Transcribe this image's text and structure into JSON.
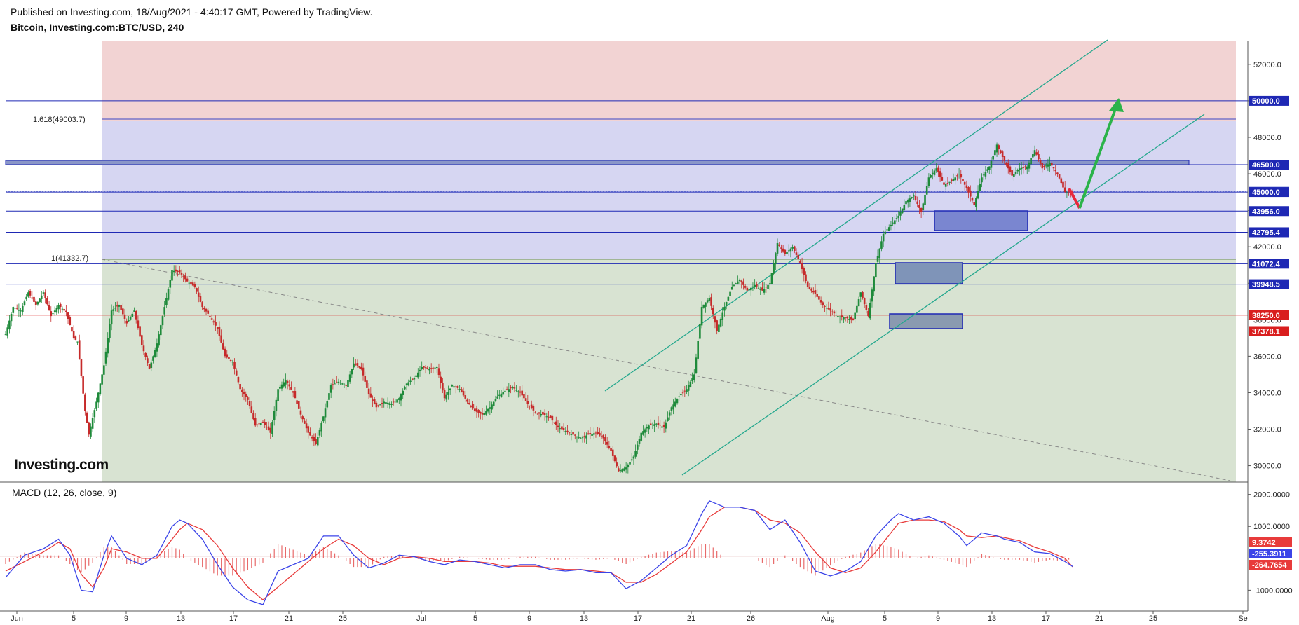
{
  "header": {
    "published": "Published on Investing.com, 18/Aug/2021 - 4:40:17 GMT, Powered by TradingView.",
    "instrument": "Bitcoin, Investing.com:BTC/USD, 240"
  },
  "logo_text": "Investing.com",
  "chart_data": [
    {
      "type": "candlestick",
      "title": "Bitcoin, Investing.com:BTC/USD, 240",
      "x_tick_labels": [
        "Jun",
        "5",
        "9",
        "13",
        "17",
        "21",
        "25",
        "Jul",
        "5",
        "9",
        "13",
        "17",
        "21",
        "26",
        "Aug",
        "5",
        "9",
        "13",
        "17",
        "21",
        "25",
        "Se"
      ],
      "y_tick_labels": [
        "30000.0",
        "32000.0",
        "34000.0",
        "36000.0",
        "38000.0",
        "40000.0",
        "42000.0",
        "44000.0",
        "46000.0",
        "48000.0",
        "50000.0",
        "52000.0"
      ],
      "ylim": [
        29100,
        53300
      ],
      "price_levels": [
        {
          "value": 50000.0,
          "label": "50000.0",
          "color": "#1e28b4"
        },
        {
          "value": 46500.0,
          "label": "46500.0",
          "color": "#1e28b4"
        },
        {
          "value": 45017.8,
          "label": "45017.8",
          "color": "#6a78d8"
        },
        {
          "value": 45000.0,
          "label": "45000.0",
          "color": "#1e28b4"
        },
        {
          "value": 43956.0,
          "label": "43956.0",
          "color": "#1e28b4"
        },
        {
          "value": 42795.4,
          "label": "42795.4",
          "color": "#1e28b4"
        },
        {
          "value": 41072.4,
          "label": "41072.4",
          "color": "#1e28b4"
        },
        {
          "value": 39948.5,
          "label": "39948.5",
          "color": "#1e28b4"
        },
        {
          "value": 38250.0,
          "label": "38250.0",
          "color": "#d91e1e"
        },
        {
          "value": 37378.1,
          "label": "37378.1",
          "color": "#d91e1e"
        }
      ],
      "fib_labels": [
        {
          "label": "1.618(49003.7)",
          "value": 49003.7,
          "color": "#3b44c4"
        },
        {
          "label": "1(41332.7)",
          "value": 41332.7,
          "color": "#4e8a2e"
        }
      ],
      "price_path": [
        [
          0,
          37200
        ],
        [
          2,
          38700
        ],
        [
          4,
          38500
        ],
        [
          6,
          39500
        ],
        [
          8,
          38800
        ],
        [
          10,
          39500
        ],
        [
          12,
          38200
        ],
        [
          14,
          38800
        ],
        [
          16,
          38400
        ],
        [
          18,
          37000
        ],
        [
          19,
          36800
        ],
        [
          21,
          33000
        ],
        [
          22,
          31700
        ],
        [
          24,
          33500
        ],
        [
          26,
          35500
        ],
        [
          28,
          38500
        ],
        [
          30,
          38800
        ],
        [
          32,
          37800
        ],
        [
          34,
          38500
        ],
        [
          36,
          36600
        ],
        [
          38,
          35300
        ],
        [
          40,
          36700
        ],
        [
          42,
          38700
        ],
        [
          44,
          40700
        ],
        [
          46,
          40600
        ],
        [
          48,
          40100
        ],
        [
          50,
          39800
        ],
        [
          52,
          38700
        ],
        [
          54,
          38200
        ],
        [
          56,
          37500
        ],
        [
          58,
          36000
        ],
        [
          60,
          35700
        ],
        [
          62,
          34200
        ],
        [
          64,
          33600
        ],
        [
          66,
          32200
        ],
        [
          68,
          32400
        ],
        [
          70,
          31800
        ],
        [
          72,
          34200
        ],
        [
          74,
          34700
        ],
        [
          76,
          34000
        ],
        [
          78,
          32800
        ],
        [
          80,
          31800
        ],
        [
          82,
          31200
        ],
        [
          84,
          32700
        ],
        [
          86,
          34400
        ],
        [
          88,
          34600
        ],
        [
          90,
          34400
        ],
        [
          92,
          35600
        ],
        [
          94,
          35300
        ],
        [
          96,
          33900
        ],
        [
          98,
          33200
        ],
        [
          100,
          33500
        ],
        [
          102,
          33400
        ],
        [
          104,
          33700
        ],
        [
          106,
          34500
        ],
        [
          108,
          34800
        ],
        [
          110,
          35400
        ],
        [
          112,
          35300
        ],
        [
          114,
          35400
        ],
        [
          116,
          33700
        ],
        [
          118,
          34400
        ],
        [
          120,
          34200
        ],
        [
          122,
          33500
        ],
        [
          124,
          33000
        ],
        [
          126,
          32800
        ],
        [
          128,
          33200
        ],
        [
          130,
          33800
        ],
        [
          132,
          34100
        ],
        [
          134,
          34300
        ],
        [
          136,
          34000
        ],
        [
          138,
          33400
        ],
        [
          140,
          32900
        ],
        [
          142,
          32800
        ],
        [
          144,
          32600
        ],
        [
          146,
          32100
        ],
        [
          148,
          31900
        ],
        [
          150,
          31700
        ],
        [
          152,
          31500
        ],
        [
          154,
          31700
        ],
        [
          156,
          31800
        ],
        [
          158,
          31500
        ],
        [
          160,
          30800
        ],
        [
          162,
          29700
        ],
        [
          164,
          29900
        ],
        [
          166,
          30500
        ],
        [
          168,
          31800
        ],
        [
          170,
          32200
        ],
        [
          172,
          32300
        ],
        [
          174,
          32100
        ],
        [
          176,
          33200
        ],
        [
          178,
          33800
        ],
        [
          180,
          34200
        ],
        [
          182,
          35000
        ],
        [
          184,
          38700
        ],
        [
          186,
          39200
        ],
        [
          188,
          37400
        ],
        [
          190,
          38700
        ],
        [
          192,
          39800
        ],
        [
          194,
          40200
        ],
        [
          196,
          39600
        ],
        [
          198,
          39900
        ],
        [
          200,
          39600
        ],
        [
          202,
          40000
        ],
        [
          204,
          42200
        ],
        [
          206,
          41600
        ],
        [
          208,
          42000
        ],
        [
          210,
          41100
        ],
        [
          212,
          39800
        ],
        [
          214,
          39400
        ],
        [
          216,
          38800
        ],
        [
          218,
          38500
        ],
        [
          220,
          38200
        ],
        [
          222,
          38100
        ],
        [
          224,
          38000
        ],
        [
          226,
          39500
        ],
        [
          228,
          38200
        ],
        [
          230,
          41100
        ],
        [
          232,
          42700
        ],
        [
          234,
          43200
        ],
        [
          236,
          43700
        ],
        [
          238,
          44500
        ],
        [
          240,
          44800
        ],
        [
          242,
          43900
        ],
        [
          244,
          45800
        ],
        [
          246,
          46300
        ],
        [
          248,
          45400
        ],
        [
          250,
          45600
        ],
        [
          252,
          46000
        ],
        [
          254,
          45200
        ],
        [
          256,
          44300
        ],
        [
          258,
          45800
        ],
        [
          260,
          46400
        ],
        [
          262,
          47600
        ],
        [
          264,
          46700
        ],
        [
          266,
          45900
        ],
        [
          268,
          46300
        ],
        [
          270,
          46400
        ],
        [
          272,
          47300
        ],
        [
          274,
          46300
        ],
        [
          276,
          46600
        ],
        [
          278,
          46000
        ],
        [
          280,
          45000
        ],
        [
          282,
          44900
        ]
      ]
    },
    {
      "type": "line",
      "title": "MACD (12, 26, close, 9)",
      "y_tick_labels": [
        "2000.0000",
        "1000.0000",
        "-1000.0000"
      ],
      "ylim": [
        -1650,
        2300
      ],
      "series": [
        {
          "name": "MACD",
          "color": "#3b44e8",
          "label": "-255.3911"
        },
        {
          "name": "Signal",
          "color": "#e83b3b",
          "label": "-264.7654"
        },
        {
          "name": "Histogram",
          "color": "#e85a5a",
          "label": "9.3742"
        }
      ],
      "macd_path": [
        [
          0,
          -600
        ],
        [
          5,
          100
        ],
        [
          10,
          300
        ],
        [
          14,
          600
        ],
        [
          17,
          100
        ],
        [
          20,
          -1000
        ],
        [
          23,
          -1050
        ],
        [
          26,
          100
        ],
        [
          28,
          700
        ],
        [
          32,
          0
        ],
        [
          36,
          -200
        ],
        [
          40,
          100
        ],
        [
          44,
          1000
        ],
        [
          46,
          1200
        ],
        [
          48,
          1100
        ],
        [
          52,
          600
        ],
        [
          56,
          -200
        ],
        [
          60,
          -900
        ],
        [
          64,
          -1300
        ],
        [
          68,
          -1450
        ],
        [
          72,
          -400
        ],
        [
          76,
          -200
        ],
        [
          80,
          0
        ],
        [
          84,
          700
        ],
        [
          88,
          700
        ],
        [
          92,
          100
        ],
        [
          96,
          -300
        ],
        [
          100,
          -150
        ],
        [
          104,
          100
        ],
        [
          108,
          50
        ],
        [
          112,
          -100
        ],
        [
          116,
          -200
        ],
        [
          120,
          -50
        ],
        [
          124,
          -100
        ],
        [
          128,
          -200
        ],
        [
          132,
          -300
        ],
        [
          136,
          -200
        ],
        [
          140,
          -200
        ],
        [
          144,
          -350
        ],
        [
          148,
          -400
        ],
        [
          152,
          -350
        ],
        [
          156,
          -450
        ],
        [
          160,
          -450
        ],
        [
          164,
          -950
        ],
        [
          168,
          -700
        ],
        [
          172,
          -300
        ],
        [
          176,
          100
        ],
        [
          180,
          400
        ],
        [
          184,
          1400
        ],
        [
          186,
          1800
        ],
        [
          190,
          1600
        ],
        [
          194,
          1600
        ],
        [
          198,
          1500
        ],
        [
          202,
          900
        ],
        [
          206,
          1200
        ],
        [
          210,
          500
        ],
        [
          214,
          -400
        ],
        [
          218,
          -550
        ],
        [
          222,
          -400
        ],
        [
          226,
          -100
        ],
        [
          230,
          700
        ],
        [
          234,
          1200
        ],
        [
          236,
          1400
        ],
        [
          240,
          1200
        ],
        [
          244,
          1300
        ],
        [
          248,
          1100
        ],
        [
          252,
          700
        ],
        [
          254,
          400
        ],
        [
          258,
          800
        ],
        [
          262,
          700
        ],
        [
          264,
          600
        ],
        [
          268,
          500
        ],
        [
          272,
          200
        ],
        [
          276,
          150
        ],
        [
          280,
          -100
        ],
        [
          282,
          -255
        ]
      ],
      "signal_path": [
        [
          0,
          -400
        ],
        [
          5,
          -100
        ],
        [
          10,
          200
        ],
        [
          14,
          500
        ],
        [
          17,
          300
        ],
        [
          20,
          -500
        ],
        [
          23,
          -900
        ],
        [
          26,
          -300
        ],
        [
          28,
          300
        ],
        [
          32,
          200
        ],
        [
          36,
          0
        ],
        [
          40,
          0
        ],
        [
          44,
          600
        ],
        [
          46,
          900
        ],
        [
          48,
          1100
        ],
        [
          52,
          900
        ],
        [
          56,
          400
        ],
        [
          60,
          -300
        ],
        [
          64,
          -900
        ],
        [
          68,
          -1300
        ],
        [
          72,
          -900
        ],
        [
          76,
          -500
        ],
        [
          80,
          -100
        ],
        [
          84,
          300
        ],
        [
          88,
          600
        ],
        [
          92,
          400
        ],
        [
          96,
          0
        ],
        [
          100,
          -200
        ],
        [
          104,
          0
        ],
        [
          108,
          50
        ],
        [
          112,
          0
        ],
        [
          116,
          -100
        ],
        [
          120,
          -100
        ],
        [
          124,
          -100
        ],
        [
          128,
          -150
        ],
        [
          132,
          -250
        ],
        [
          136,
          -250
        ],
        [
          140,
          -250
        ],
        [
          144,
          -300
        ],
        [
          148,
          -350
        ],
        [
          152,
          -350
        ],
        [
          156,
          -400
        ],
        [
          160,
          -450
        ],
        [
          164,
          -750
        ],
        [
          168,
          -750
        ],
        [
          172,
          -500
        ],
        [
          176,
          -150
        ],
        [
          180,
          200
        ],
        [
          184,
          900
        ],
        [
          186,
          1300
        ],
        [
          190,
          1600
        ],
        [
          194,
          1600
        ],
        [
          198,
          1500
        ],
        [
          202,
          1200
        ],
        [
          206,
          1100
        ],
        [
          210,
          800
        ],
        [
          214,
          200
        ],
        [
          218,
          -300
        ],
        [
          222,
          -450
        ],
        [
          226,
          -300
        ],
        [
          230,
          200
        ],
        [
          234,
          800
        ],
        [
          236,
          1100
        ],
        [
          240,
          1200
        ],
        [
          244,
          1200
        ],
        [
          248,
          1150
        ],
        [
          252,
          900
        ],
        [
          254,
          700
        ],
        [
          258,
          650
        ],
        [
          262,
          700
        ],
        [
          264,
          650
        ],
        [
          268,
          550
        ],
        [
          272,
          350
        ],
        [
          276,
          200
        ],
        [
          280,
          0
        ],
        [
          282,
          -265
        ]
      ]
    }
  ]
}
